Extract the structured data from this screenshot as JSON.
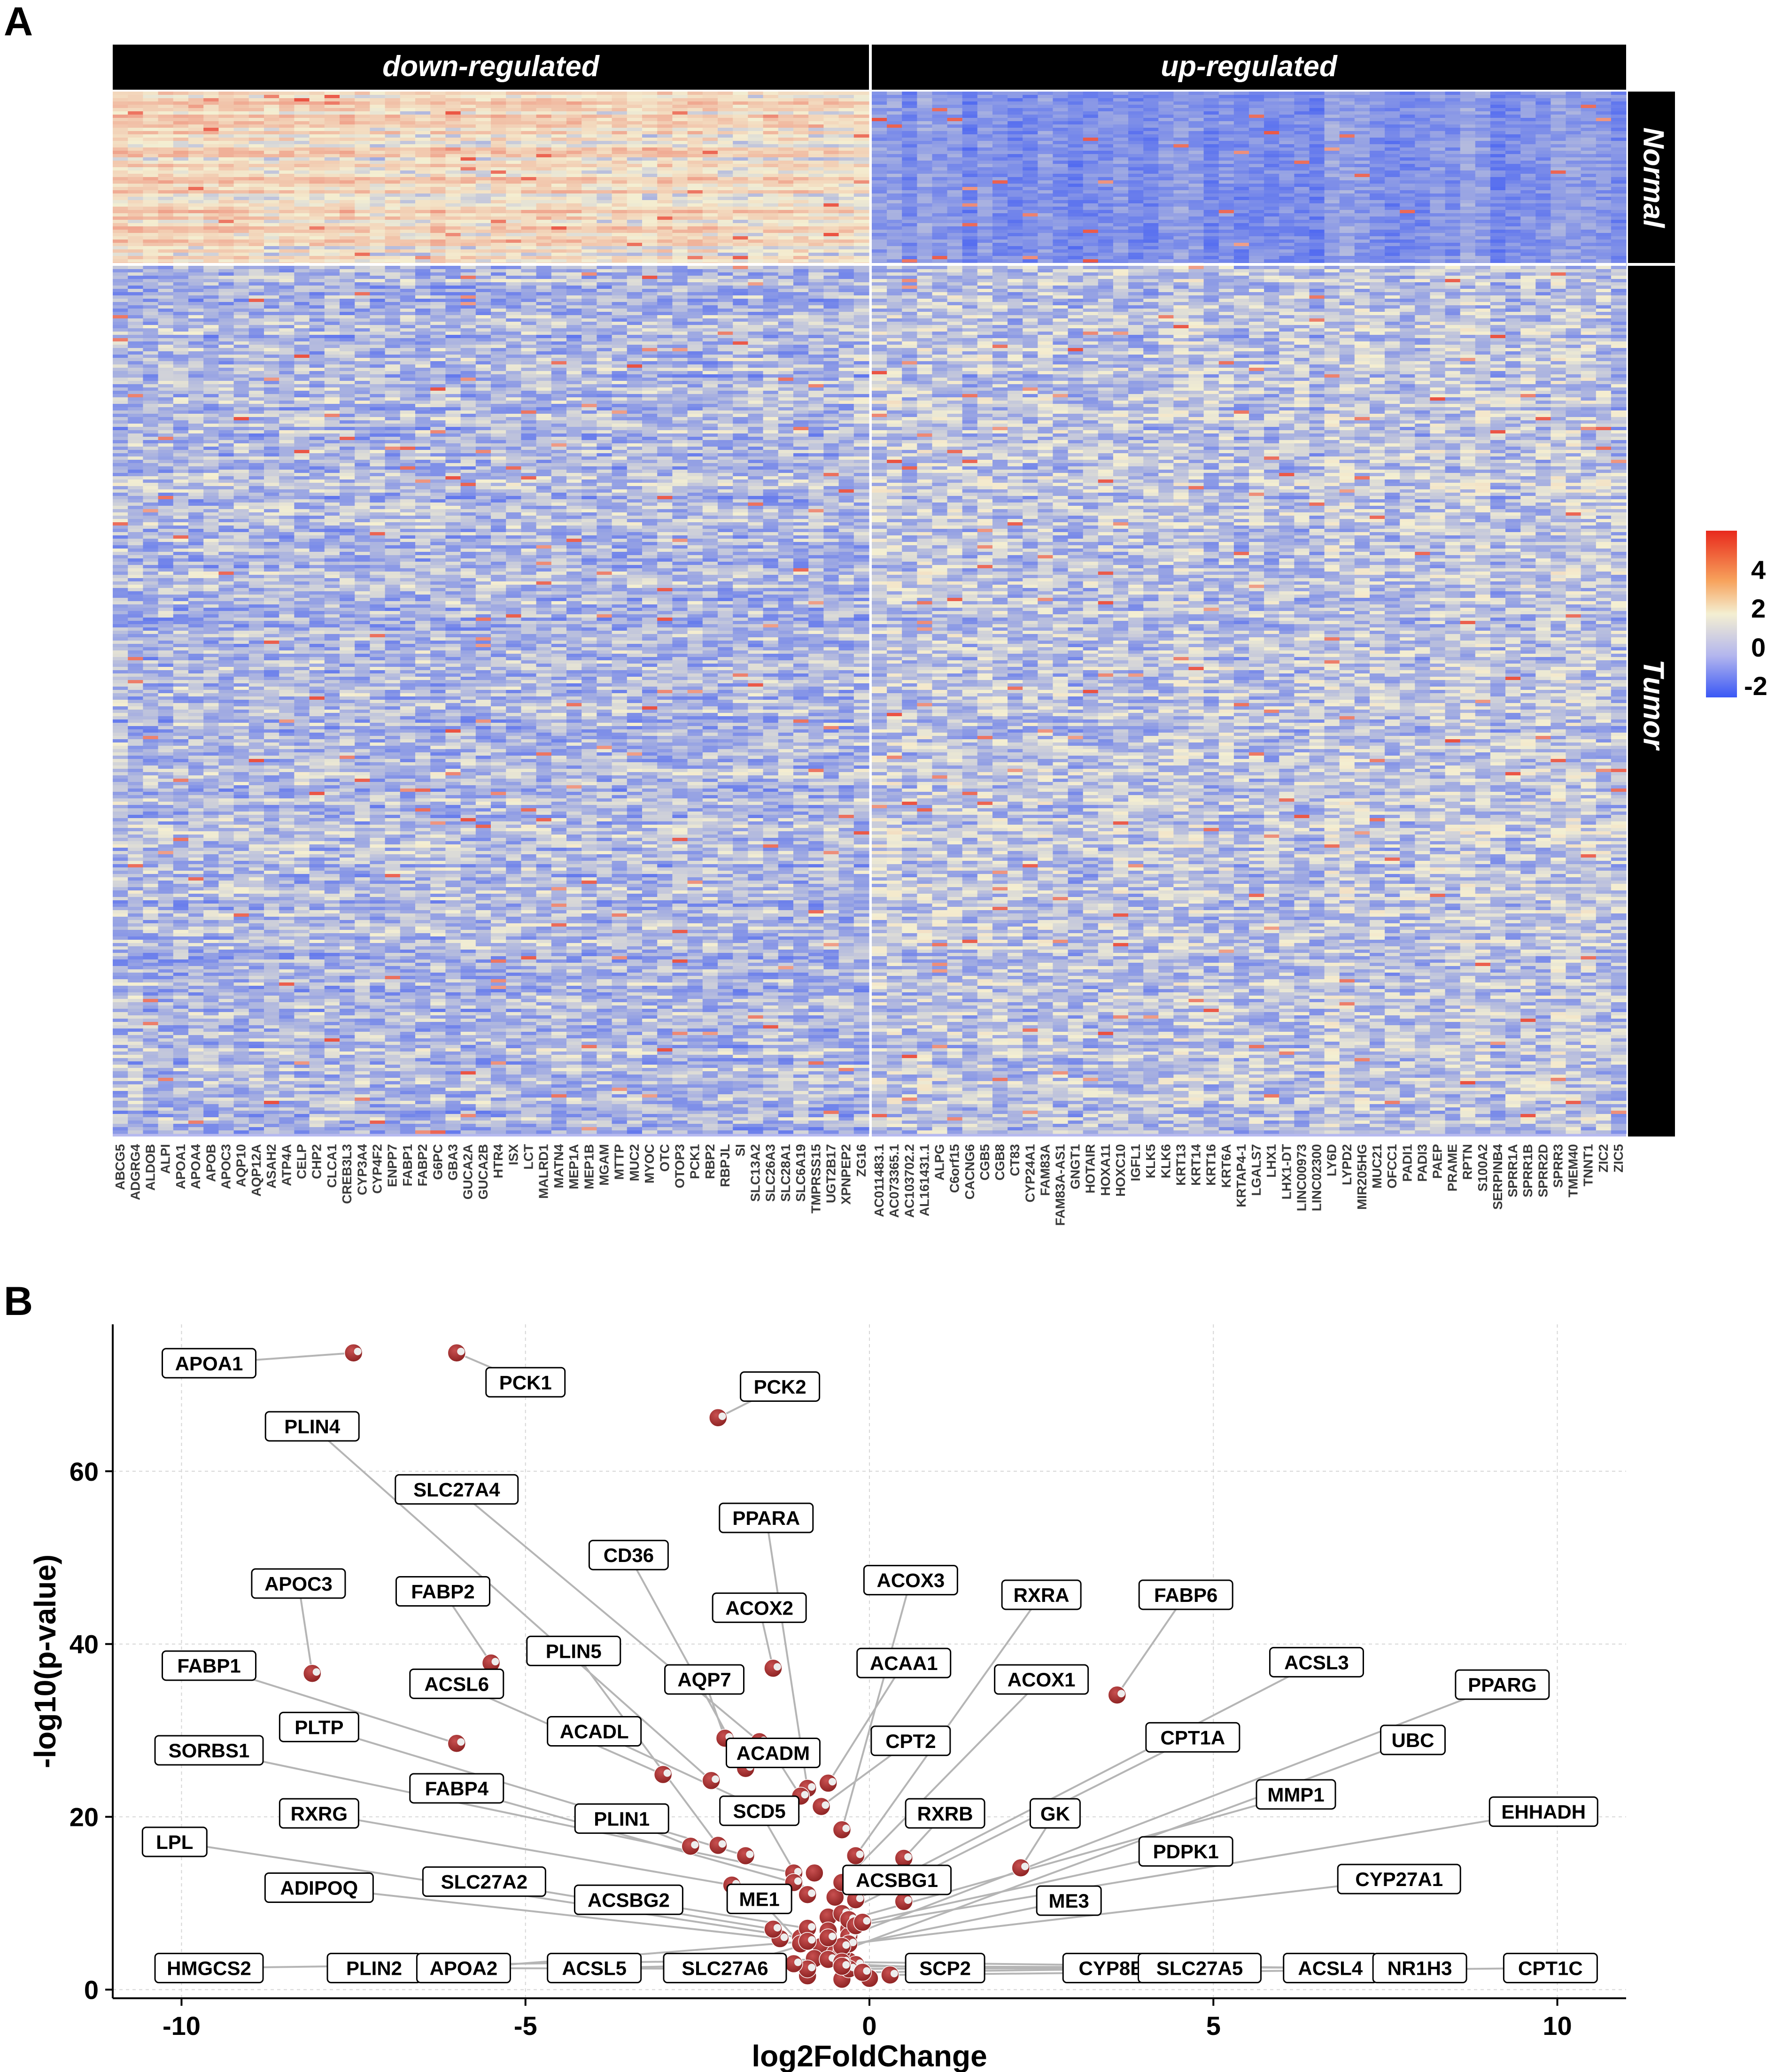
{
  "panel_a": {
    "letter": "A",
    "column_groups": [
      "down-regulated",
      "up-regulated"
    ],
    "row_groups": [
      "Normal",
      "Tumor"
    ],
    "legend_ticks": [
      "4",
      "2",
      "0",
      "-2"
    ],
    "colors": {
      "low": "#3a57f5",
      "mid": "#f4efd2",
      "high": "#e8291c",
      "base": "#b6b9ef",
      "header": "#000000"
    },
    "genes_down": [
      "ABCG5",
      "ADGRG4",
      "ALDOB",
      "ALPI",
      "APOA1",
      "APOA4",
      "APOB",
      "APOC3",
      "AQP10",
      "AQP12A",
      "ASAH2",
      "ATP4A",
      "CELP",
      "CHP2",
      "CLCA1",
      "CREB3L3",
      "CYP3A4",
      "CYP4F2",
      "ENPP7",
      "FABP1",
      "FABP2",
      "G6PC",
      "GBA3",
      "GUCA2A",
      "GUCA2B",
      "HTR4",
      "ISX",
      "LCT",
      "MALRD1",
      "MATN4",
      "MEP1A",
      "MEP1B",
      "MGAM",
      "MTTP",
      "MUC2",
      "MYOC",
      "OTC",
      "OTOP3",
      "PCK1",
      "RBP2",
      "RBPJL",
      "SI",
      "SLC13A2",
      "SLC26A3",
      "SLC28A1",
      "SLC6A19",
      "TMPRSS15",
      "UGT2B17",
      "XPNPEP2",
      "ZG16"
    ],
    "genes_up": [
      "AC011483.1",
      "AC073365.1",
      "AC103702.2",
      "AL161431.1",
      "ALPG",
      "C6orf15",
      "CACNG6",
      "CGB5",
      "CGB8",
      "CT83",
      "CYP24A1",
      "FAM83A",
      "FAM83A-AS1",
      "GNGT1",
      "HOTAIR",
      "HOXA11",
      "HOXC10",
      "IGFL1",
      "KLK5",
      "KLK6",
      "KRT13",
      "KRT14",
      "KRT16",
      "KRT6A",
      "KRTAP4-1",
      "LGALS7",
      "LHX1",
      "LHX1-DT",
      "LINC00973",
      "LINC02300",
      "LY6D",
      "LYPD2",
      "MIR205HG",
      "MUC21",
      "OFCC1",
      "PADI1",
      "PADI3",
      "PAEP",
      "PRAME",
      "RPTN",
      "S100A2",
      "SERPINB4",
      "SPRR1A",
      "SPRR1B",
      "SPRR2D",
      "SPRR3",
      "TMEM40",
      "TNNT1",
      "ZIC2",
      "ZIC5"
    ]
  },
  "panel_b": {
    "letter": "B",
    "chart_data": {
      "type": "scatter",
      "xlabel": "log2FoldChange",
      "ylabel": "-log10(p-value)",
      "xlim": [
        -11,
        11
      ],
      "ylim": [
        -1,
        77
      ],
      "xticks": [
        -10,
        -5,
        0,
        5,
        10
      ],
      "yticks": [
        0,
        20,
        40,
        60
      ],
      "grid": true,
      "point_color": "#a83232",
      "labeled_points": [
        {
          "gene": "APOA1",
          "x": -7.5,
          "y": 73.7,
          "lx": -9.6,
          "ly": 72.5
        },
        {
          "gene": "PCK1",
          "x": -6.0,
          "y": 73.7,
          "lx": -5.0,
          "ly": 70.3
        },
        {
          "gene": "PCK2",
          "x": -2.2,
          "y": 66.2,
          "lx": -1.3,
          "ly": 69.8
        },
        {
          "gene": "PLIN4",
          "x": -2.3,
          "y": 24.2,
          "lx": -8.1,
          "ly": 65.2
        },
        {
          "gene": "SLC27A4",
          "x": -1.6,
          "y": 28.7,
          "lx": -6.0,
          "ly": 57.9
        },
        {
          "gene": "PPARA",
          "x": -0.9,
          "y": 23.3,
          "lx": -1.5,
          "ly": 54.6
        },
        {
          "gene": "CD36",
          "x": -1.8,
          "y": 25.6,
          "lx": -3.5,
          "ly": 50.3
        },
        {
          "gene": "ACOX3",
          "x": -0.4,
          "y": 18.5,
          "lx": 0.6,
          "ly": 47.4
        },
        {
          "gene": "APOC3",
          "x": -8.1,
          "y": 36.6,
          "lx": -8.3,
          "ly": 47.0
        },
        {
          "gene": "FABP2",
          "x": -5.5,
          "y": 37.8,
          "lx": -6.2,
          "ly": 46.1
        },
        {
          "gene": "RXRA",
          "x": -0.2,
          "y": 15.5,
          "lx": 2.5,
          "ly": 45.7
        },
        {
          "gene": "FABP6",
          "x": 3.6,
          "y": 34.1,
          "lx": 4.6,
          "ly": 45.7
        },
        {
          "gene": "ACOX2",
          "x": -1.4,
          "y": 37.2,
          "lx": -1.6,
          "ly": 44.2
        },
        {
          "gene": "PLIN5",
          "x": -2.2,
          "y": 16.7,
          "lx": -4.3,
          "ly": 39.2
        },
        {
          "gene": "ACAA1",
          "x": -0.6,
          "y": 23.9,
          "lx": 0.5,
          "ly": 37.8
        },
        {
          "gene": "FABP1",
          "x": -6.0,
          "y": 28.5,
          "lx": -9.6,
          "ly": 37.5
        },
        {
          "gene": "ACSL3",
          "x": -0.2,
          "y": 10.4,
          "lx": 6.5,
          "ly": 37.9
        },
        {
          "gene": "AQP7",
          "x": -2.1,
          "y": 29.1,
          "lx": -2.4,
          "ly": 35.9
        },
        {
          "gene": "ACOX1",
          "x": -0.4,
          "y": 12.4,
          "lx": 2.5,
          "ly": 35.9
        },
        {
          "gene": "ACSL6",
          "x": -3.0,
          "y": 24.9,
          "lx": -6.0,
          "ly": 35.4
        },
        {
          "gene": "PPARG",
          "x": -0.3,
          "y": 6.2,
          "lx": 9.2,
          "ly": 35.3
        },
        {
          "gene": "PLTP",
          "x": -1.8,
          "y": 15.5,
          "lx": -8.0,
          "ly": 30.4
        },
        {
          "gene": "ACADL",
          "x": -1.7,
          "y": 21.4,
          "lx": -4.0,
          "ly": 29.9
        },
        {
          "gene": "CPT2",
          "x": -0.7,
          "y": 21.2,
          "lx": 0.6,
          "ly": 28.8
        },
        {
          "gene": "CPT1A",
          "x": -0.4,
          "y": 8.8,
          "lx": 4.7,
          "ly": 29.2
        },
        {
          "gene": "UBC",
          "x": -0.4,
          "y": 4.5,
          "lx": 7.9,
          "ly": 28.9
        },
        {
          "gene": "SORBS1",
          "x": -1.1,
          "y": 13.5,
          "lx": -9.6,
          "ly": 27.7
        },
        {
          "gene": "ACADM",
          "x": -1.0,
          "y": 22.4,
          "lx": -1.4,
          "ly": 27.4
        },
        {
          "gene": "FABP4",
          "x": -1.1,
          "y": 12.4,
          "lx": -6.0,
          "ly": 23.3
        },
        {
          "gene": "MMP1",
          "x": -0.3,
          "y": 8.1,
          "lx": 6.2,
          "ly": 22.6
        },
        {
          "gene": "RXRG",
          "x": -2.0,
          "y": 12.1,
          "lx": -8.0,
          "ly": 20.4
        },
        {
          "gene": "SCD5",
          "x": -0.9,
          "y": 11.0,
          "lx": -1.6,
          "ly": 20.7
        },
        {
          "gene": "RXRB",
          "x": 0.5,
          "y": 15.2,
          "lx": 1.1,
          "ly": 20.4
        },
        {
          "gene": "GK",
          "x": 2.2,
          "y": 14.1,
          "lx": 2.7,
          "ly": 20.4
        },
        {
          "gene": "EHHADH",
          "x": -0.2,
          "y": 7.4,
          "lx": 9.8,
          "ly": 20.6
        },
        {
          "gene": "PLIN1",
          "x": -2.6,
          "y": 16.6,
          "lx": -3.6,
          "ly": 19.8
        },
        {
          "gene": "LPL",
          "x": -1.0,
          "y": 6.0,
          "lx": -10.1,
          "ly": 17.1
        },
        {
          "gene": "PDPK1",
          "x": -0.1,
          "y": 7.8,
          "lx": 4.6,
          "ly": 16.0
        },
        {
          "gene": "ADIPOQ",
          "x": -1.3,
          "y": 5.9,
          "lx": -8.0,
          "ly": 11.8
        },
        {
          "gene": "SLC27A2",
          "x": -1.4,
          "y": 7.0,
          "lx": -5.6,
          "ly": 12.5
        },
        {
          "gene": "ACSBG1",
          "x": 0.5,
          "y": 10.2,
          "lx": 0.4,
          "ly": 12.7
        },
        {
          "gene": "CYP27A1",
          "x": -0.3,
          "y": 5.3,
          "lx": 7.7,
          "ly": 12.8
        },
        {
          "gene": "ACSBG2",
          "x": -0.9,
          "y": 7.1,
          "lx": -3.5,
          "ly": 10.4
        },
        {
          "gene": "ME1",
          "x": -1.0,
          "y": 5.3,
          "lx": -1.6,
          "ly": 10.5
        },
        {
          "gene": "ME3",
          "x": -0.4,
          "y": 5.0,
          "lx": 2.9,
          "ly": 10.3
        },
        {
          "gene": "HMGCS2",
          "x": -0.6,
          "y": 3.5,
          "lx": -9.6,
          "ly": 2.5
        },
        {
          "gene": "PLIN2",
          "x": -0.9,
          "y": 2.4,
          "lx": -7.2,
          "ly": 2.5
        },
        {
          "gene": "APOA2",
          "x": -0.9,
          "y": 5.6,
          "lx": -5.9,
          "ly": 2.5
        },
        {
          "gene": "ACSL5",
          "x": -1.1,
          "y": 3.0,
          "lx": -4.0,
          "ly": 2.5
        },
        {
          "gene": "SLC27A6",
          "x": -0.6,
          "y": 6.0,
          "lx": -2.1,
          "ly": 2.5
        },
        {
          "gene": "SCP2",
          "x": -0.2,
          "y": 2.9,
          "lx": 1.1,
          "ly": 2.5
        },
        {
          "gene": "CYP8B1",
          "x": -0.3,
          "y": 2.4,
          "lx": 3.6,
          "ly": 2.5
        },
        {
          "gene": "SLC27A5",
          "x": -0.1,
          "y": 2.0,
          "lx": 4.8,
          "ly": 2.5
        },
        {
          "gene": "ACSL4",
          "x": -0.4,
          "y": 3.2,
          "lx": 6.7,
          "ly": 2.5
        },
        {
          "gene": "NR1H3",
          "x": -0.4,
          "y": 2.7,
          "lx": 8.0,
          "ly": 2.5
        },
        {
          "gene": "CPT1C",
          "x": 0.3,
          "y": 1.7,
          "lx": 9.9,
          "ly": 2.5
        }
      ],
      "other_points": [
        {
          "x": -0.8,
          "y": 13.5
        },
        {
          "x": -0.5,
          "y": 10.7
        },
        {
          "x": -0.6,
          "y": 8.4
        },
        {
          "x": -0.3,
          "y": 7.0
        },
        {
          "x": -0.7,
          "y": 5.0
        },
        {
          "x": -0.5,
          "y": 4.2
        },
        {
          "x": -0.8,
          "y": 3.6
        },
        {
          "x": -0.3,
          "y": 3.3
        },
        {
          "x": -0.9,
          "y": 1.6
        },
        {
          "x": -0.4,
          "y": 1.2
        },
        {
          "x": 0.0,
          "y": 1.3
        },
        {
          "x": -0.6,
          "y": 6.8
        }
      ]
    }
  }
}
